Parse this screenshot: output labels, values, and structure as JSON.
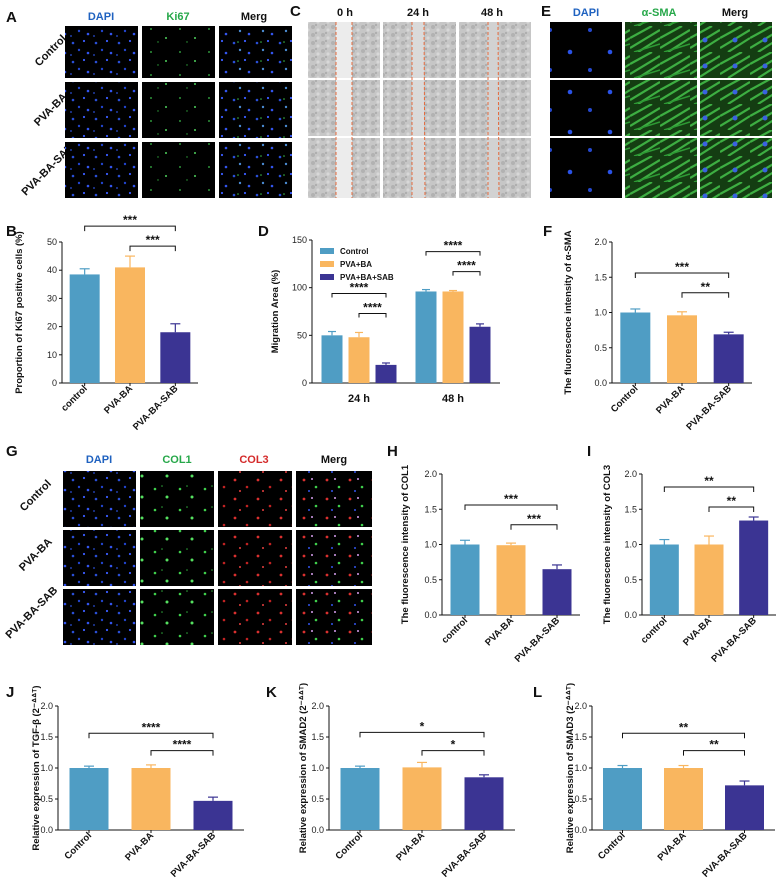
{
  "colors": {
    "control": "#4f9dc4",
    "pva_ba": "#f9b65f",
    "pva_ba_sab": "#3b3493"
  },
  "panels": [
    {
      "label": "A",
      "type": "image-grid",
      "columns": [
        "DAPI",
        "Ki67",
        "Merg"
      ],
      "column_colors": [
        "#1f62c0",
        "#27a84a",
        "#111111"
      ],
      "rows": [
        "Control",
        "PVA-BA",
        "PVA-BA-SAB"
      ]
    },
    {
      "label": "C",
      "type": "image-grid",
      "columns": [
        "0 h",
        "24 h",
        "48 h"
      ],
      "column_colors": [
        "#111111",
        "#111111",
        "#111111"
      ],
      "rows": []
    },
    {
      "label": "E",
      "type": "image-grid",
      "columns": [
        "DAPI",
        "α-SMA",
        "Merg"
      ],
      "column_colors": [
        "#1f62c0",
        "#27a84a",
        "#111111"
      ],
      "rows": []
    },
    {
      "label": "G",
      "type": "image-grid",
      "columns": [
        "DAPI",
        "COL1",
        "COL3",
        "Merg"
      ],
      "column_colors": [
        "#1f62c0",
        "#27a84a",
        "#d42a2a",
        "#111111"
      ],
      "rows": [
        "Control",
        "PVA-BA",
        "PVA-BA-SAB"
      ]
    }
  ],
  "chart_data": [
    {
      "label": "B",
      "type": "bar",
      "categories": [
        "control",
        "PVA-BA",
        "PVA-BA-SAB"
      ],
      "values": [
        38.5,
        41,
        18
      ],
      "errors": [
        2,
        4,
        3
      ],
      "ylabel": "Proportion of Ki67 positive cells (%)",
      "ylim": [
        0,
        50
      ],
      "yticks": [
        "0",
        "10",
        "20",
        "30",
        "40",
        "50"
      ],
      "significance": [
        {
          "from": 0,
          "to": 2,
          "label": "***"
        },
        {
          "from": 1,
          "to": 2,
          "label": "***"
        }
      ]
    },
    {
      "label": "D",
      "type": "bar",
      "categories": [
        "24 h",
        "48 h"
      ],
      "series": [
        {
          "name": "Control",
          "values": [
            50,
            96
          ],
          "errors": [
            4,
            2
          ]
        },
        {
          "name": "PVA+BA",
          "values": [
            48,
            96
          ],
          "errors": [
            5,
            1
          ]
        },
        {
          "name": "PVA+BA+SAB",
          "values": [
            19,
            59
          ],
          "errors": [
            2,
            3
          ]
        }
      ],
      "ylabel": "Migration Area (%)",
      "ylim": [
        0,
        150
      ],
      "yticks": [
        "0",
        "50",
        "100",
        "150"
      ],
      "legend": "top-left",
      "significance": [
        {
          "group": 0,
          "from": 0,
          "to": 2,
          "label": "****"
        },
        {
          "group": 0,
          "from": 1,
          "to": 2,
          "label": "****"
        },
        {
          "group": 1,
          "from": 0,
          "to": 2,
          "label": "****"
        },
        {
          "group": 1,
          "from": 1,
          "to": 2,
          "label": "****"
        }
      ]
    },
    {
      "label": "F",
      "type": "bar",
      "categories": [
        "Control",
        "PVA-BA",
        "PVA-BA-SAB"
      ],
      "values": [
        1.0,
        0.96,
        0.69
      ],
      "errors": [
        0.05,
        0.05,
        0.03
      ],
      "ylabel": "The fluorescence intensity of α-SMA",
      "ylim": [
        0,
        2.0
      ],
      "yticks": [
        "0.0",
        "0.5",
        "1.0",
        "1.5",
        "2.0"
      ],
      "significance": [
        {
          "from": 0,
          "to": 2,
          "label": "***"
        },
        {
          "from": 1,
          "to": 2,
          "label": "**"
        }
      ]
    },
    {
      "label": "H",
      "type": "bar",
      "categories": [
        "control",
        "PVA-BA",
        "PVA-BA-SAB"
      ],
      "values": [
        1.0,
        0.99,
        0.65
      ],
      "errors": [
        0.06,
        0.03,
        0.06
      ],
      "ylabel": "The fluorescence intensity of COL1",
      "ylim": [
        0,
        2.0
      ],
      "yticks": [
        "0.0",
        "0.5",
        "1.0",
        "1.5",
        "2.0"
      ],
      "significance": [
        {
          "from": 0,
          "to": 2,
          "label": "***"
        },
        {
          "from": 1,
          "to": 2,
          "label": "***"
        }
      ]
    },
    {
      "label": "I",
      "type": "bar",
      "categories": [
        "control",
        "PVA-BA",
        "PVA-BA-SAB"
      ],
      "values": [
        1.0,
        1.0,
        1.34
      ],
      "errors": [
        0.07,
        0.12,
        0.05
      ],
      "ylabel": "The fluorescence intensity of COL3",
      "ylim": [
        0,
        2.0
      ],
      "yticks": [
        "0.0",
        "0.5",
        "1.0",
        "1.5",
        "2.0"
      ],
      "significance": [
        {
          "from": 0,
          "to": 2,
          "label": "**"
        },
        {
          "from": 1,
          "to": 2,
          "label": "**"
        }
      ]
    },
    {
      "label": "J",
      "type": "bar",
      "categories": [
        "Control",
        "PVA-BA",
        "PVA-BA-SAB"
      ],
      "values": [
        1.0,
        1.0,
        0.47
      ],
      "errors": [
        0.03,
        0.05,
        0.06
      ],
      "ylabel": "Relative expression of TGF-β (2⁻ᐞᐞᵀ)",
      "ylim": [
        0,
        2.0
      ],
      "yticks": [
        "0.0",
        "0.5",
        "1.0",
        "1.5",
        "2.0"
      ],
      "significance": [
        {
          "from": 0,
          "to": 2,
          "label": "****"
        },
        {
          "from": 1,
          "to": 2,
          "label": "****"
        }
      ]
    },
    {
      "label": "K",
      "type": "bar",
      "categories": [
        "Control",
        "PVA-BA",
        "PVA-BA-SAB"
      ],
      "values": [
        1.0,
        1.01,
        0.85
      ],
      "errors": [
        0.03,
        0.08,
        0.04
      ],
      "ylabel": "Relative expression of SMAD2 (2⁻ᐞᐞᵀ)",
      "ylim": [
        0,
        2.0
      ],
      "yticks": [
        "0.0",
        "0.5",
        "1.0",
        "1.5",
        "2.0"
      ],
      "significance": [
        {
          "from": 0,
          "to": 2,
          "label": "*"
        },
        {
          "from": 1,
          "to": 2,
          "label": "*"
        }
      ]
    },
    {
      "label": "L",
      "type": "bar",
      "categories": [
        "Control",
        "PVA-BA",
        "PVA-BA-SAB"
      ],
      "values": [
        1.0,
        1.0,
        0.72
      ],
      "errors": [
        0.04,
        0.04,
        0.07
      ],
      "ylabel": "Relative expression of SMAD3 (2⁻ᐞᐞᵀ)",
      "ylim": [
        0,
        2.0
      ],
      "yticks": [
        "0.0",
        "0.5",
        "1.0",
        "1.5",
        "2.0"
      ],
      "significance": [
        {
          "from": 0,
          "to": 2,
          "label": "**"
        },
        {
          "from": 1,
          "to": 2,
          "label": "**"
        }
      ]
    }
  ]
}
